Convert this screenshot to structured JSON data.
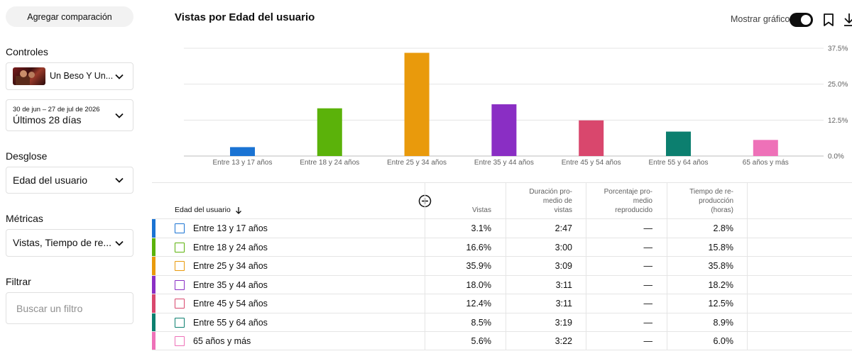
{
  "sidebar": {
    "compare_button": "Agregar comparación",
    "controls_heading": "Controles",
    "video_title": "Un Beso Y Un...",
    "date_range_small": "30 de jun – 27 de jul de 2026",
    "date_range_label": "Últimos 28 días",
    "breakdown_heading": "Desglose",
    "breakdown_value": "Edad del usuario",
    "metrics_heading": "Métricas",
    "metrics_value": "Vistas, Tiempo de re...",
    "filter_heading": "Filtrar",
    "filter_placeholder": "Buscar un filtro"
  },
  "header": {
    "title": "Vistas por Edad del usuario",
    "toggle_label": "Mostrar gráfico",
    "toggle_on": true,
    "icons": [
      "bookmark-icon",
      "download-icon"
    ]
  },
  "chart_data": {
    "type": "bar",
    "categories": [
      "Entre 13 y 17 años",
      "Entre 18 y 24 años",
      "Entre 25 y 34 años",
      "Entre 35 y 44 años",
      "Entre 45 y 54 años",
      "Entre 55 y 64 años",
      "65 años y más"
    ],
    "values": [
      3.1,
      16.6,
      35.9,
      18.0,
      12.4,
      8.5,
      5.6
    ],
    "colors": [
      "#1a73d3",
      "#5bb20a",
      "#e99a0c",
      "#8a2ec4",
      "#d9476d",
      "#0c7f6f",
      "#ee71b8"
    ],
    "yticks": [
      "37.5%",
      "25.0%",
      "12.5%",
      "0.0%"
    ],
    "ytick_values": [
      37.5,
      25.0,
      12.5,
      0.0
    ],
    "ylim": [
      0,
      37.5
    ],
    "grid": true
  },
  "table": {
    "columns": {
      "dimension": "Edad del usuario",
      "views": "Vistas",
      "avg_duration": [
        "Duración pro-",
        "medio de",
        "vistas"
      ],
      "avg_percent": [
        "Porcentaje pro-",
        "medio",
        "reproducido"
      ],
      "watch_time": [
        "Tiempo de re-",
        "producción",
        "(horas)"
      ]
    },
    "rows": [
      {
        "label": "Entre 13 y 17 años",
        "views": "3.1%",
        "duration": "2:47",
        "percent": "—",
        "watch": "2.8%",
        "color": "#1a73d3"
      },
      {
        "label": "Entre 18 y 24 años",
        "views": "16.6%",
        "duration": "3:00",
        "percent": "—",
        "watch": "15.8%",
        "color": "#5bb20a"
      },
      {
        "label": "Entre 25 y 34 años",
        "views": "35.9%",
        "duration": "3:09",
        "percent": "—",
        "watch": "35.8%",
        "color": "#e99a0c"
      },
      {
        "label": "Entre 35 y 44 años",
        "views": "18.0%",
        "duration": "3:11",
        "percent": "—",
        "watch": "18.2%",
        "color": "#8a2ec4"
      },
      {
        "label": "Entre 45 y 54 años",
        "views": "12.4%",
        "duration": "3:11",
        "percent": "—",
        "watch": "12.5%",
        "color": "#d9476d"
      },
      {
        "label": "Entre 55 y 64 años",
        "views": "8.5%",
        "duration": "3:19",
        "percent": "—",
        "watch": "8.9%",
        "color": "#0c7f6f"
      },
      {
        "label": "65 años y más",
        "views": "5.6%",
        "duration": "3:22",
        "percent": "—",
        "watch": "6.0%",
        "color": "#ee71b8"
      }
    ]
  }
}
